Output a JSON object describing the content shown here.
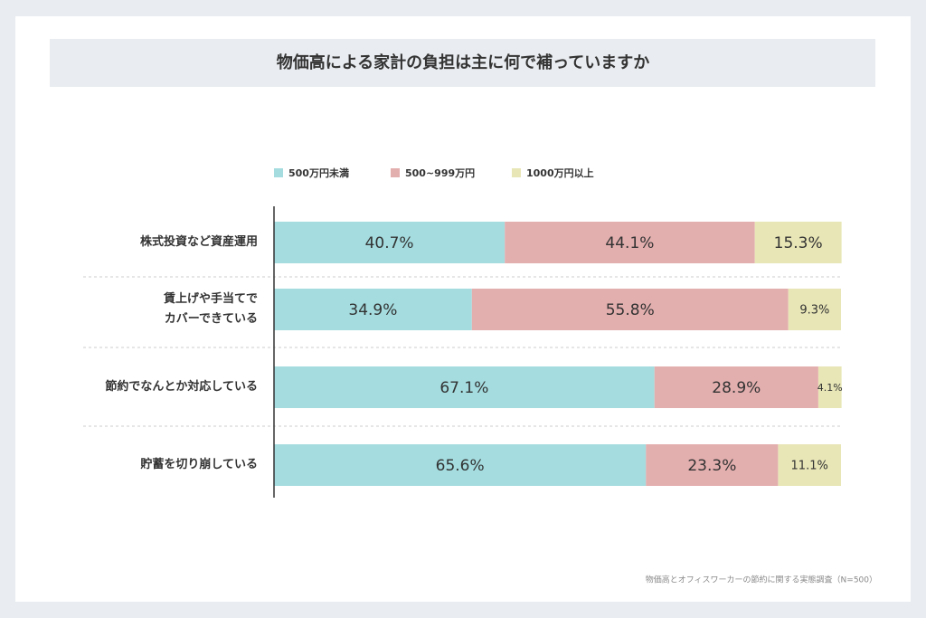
{
  "chart_data": {
    "type": "stacked-bar-horizontal",
    "title": "物価高による家計の負担は主に何で補っていますか",
    "categories": [
      "株式投資など資産運用",
      "賃上げや手当てで\nカバーできている",
      "節約でなんとか対応している",
      "貯蓄を切り崩している"
    ],
    "series": [
      {
        "name": "500万円未満",
        "color": "#a4dcdf",
        "values": [
          40.7,
          34.9,
          67.1,
          65.6
        ],
        "value_labels": [
          "40.7%",
          "34.9%",
          "67.1%",
          "65.6%"
        ]
      },
      {
        "name": "500~999万円",
        "color": "#e3aeae",
        "values": [
          44.1,
          55.8,
          28.9,
          23.3
        ],
        "value_labels": [
          "44.1%",
          "55.8%",
          "28.9%",
          "23.3%"
        ]
      },
      {
        "name": "1000万円以上",
        "color": "#e8e6b6",
        "values": [
          15.3,
          9.3,
          4.1,
          11.1
        ],
        "value_labels": [
          "15.3%",
          "9.3%",
          "4.1%",
          "11.1%"
        ]
      }
    ],
    "xlim": [
      0,
      100
    ],
    "legend": "top",
    "source": "物価高とオフィスワーカーの節約に関する実態調査（N=500）"
  }
}
